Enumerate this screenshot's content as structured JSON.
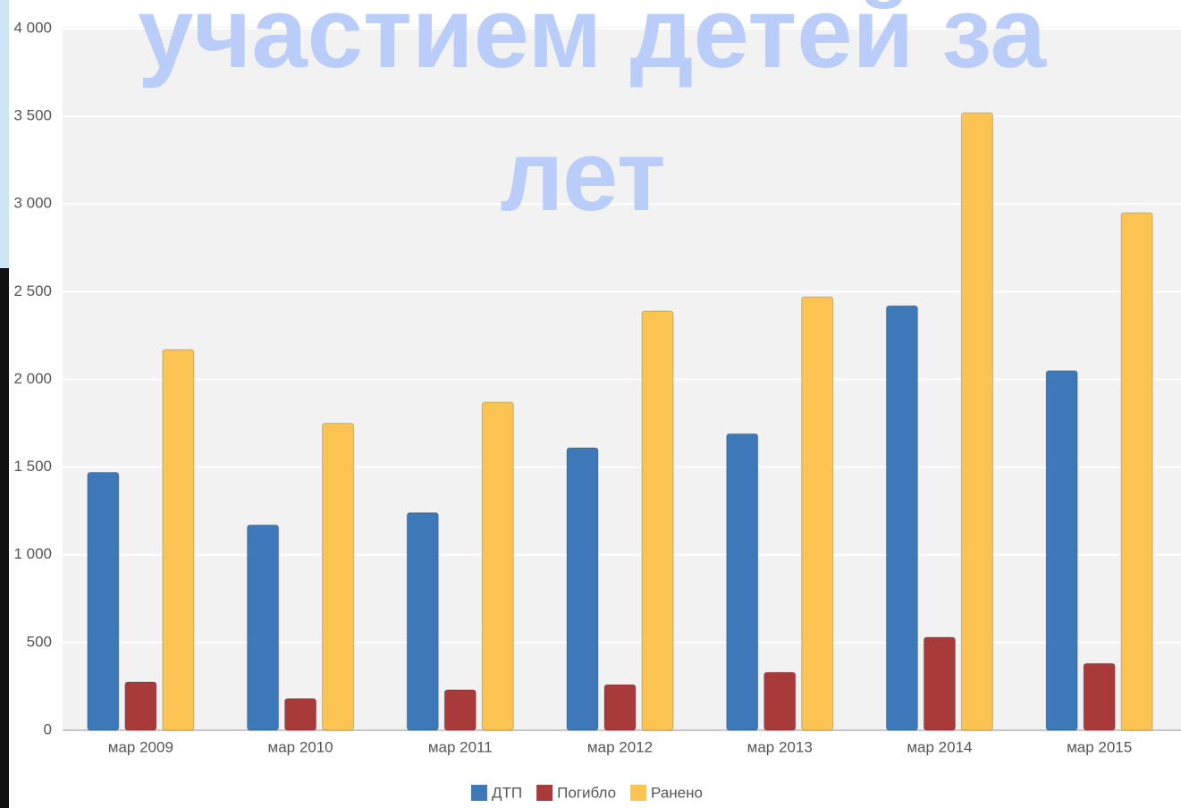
{
  "chart_data": {
    "type": "bar",
    "title": [
      "участием детей за",
      "лет"
    ],
    "categories": [
      "мар 2009",
      "мар 2010",
      "мар 2011",
      "мар 2012",
      "мар 2013",
      "мар 2014",
      "мар 2015"
    ],
    "series": [
      {
        "name": "ДТП",
        "color": "#3d78b8",
        "values": [
          1470,
          1170,
          1240,
          1610,
          1690,
          2420,
          2050
        ]
      },
      {
        "name": "Погибло",
        "color": "#a83a3a",
        "values": [
          275,
          180,
          230,
          260,
          330,
          530,
          380
        ]
      },
      {
        "name": "Ранено",
        "color": "#fbc352",
        "values": [
          2170,
          1750,
          1870,
          2390,
          2470,
          3520,
          2950
        ]
      }
    ],
    "ylim": [
      0,
      4000
    ],
    "yticks": [
      0,
      500,
      {
        "value": 1000,
        "label": "1 000"
      },
      {
        "value": 1500,
        "label": "1 500"
      },
      {
        "value": 2000,
        "label": "2 000"
      },
      {
        "value": 2500,
        "label": "2 500"
      },
      {
        "value": 3000,
        "label": "3 000"
      },
      {
        "value": 3500,
        "label": "3 500"
      },
      {
        "value": 4000,
        "label": "4 000"
      }
    ],
    "grid": true,
    "legend": "bottom"
  }
}
